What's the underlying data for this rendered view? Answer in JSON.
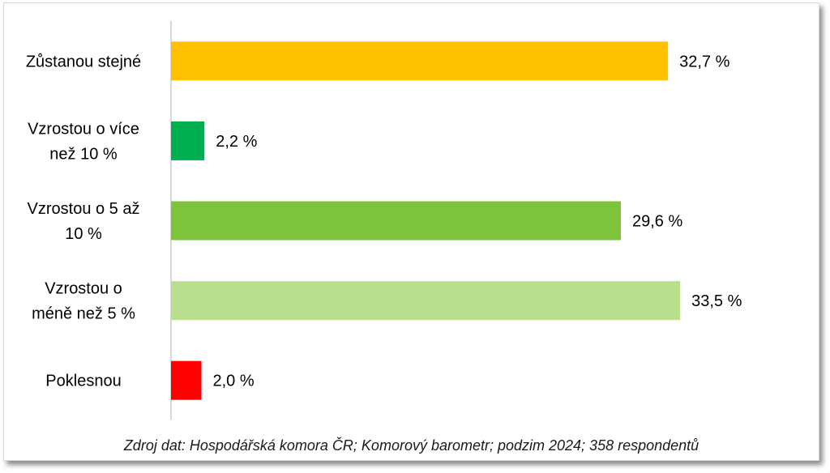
{
  "chart_data": {
    "type": "bar",
    "orientation": "horizontal",
    "categories": [
      [
        "Zůstanou stejné"
      ],
      [
        "Vzrostou o více",
        "než 10 %"
      ],
      [
        "Vzrostou o 5 až",
        "10 %"
      ],
      [
        "Vzrostou o",
        "méně než 5 %"
      ],
      [
        "Poklesnou"
      ]
    ],
    "values": [
      32.7,
      2.2,
      29.6,
      33.5,
      2.0
    ],
    "value_labels": [
      "32,7 %",
      "2,2 %",
      "29,6 %",
      "33,5 %",
      "2,0 %"
    ],
    "colors": [
      "#FFC000",
      "#00B050",
      "#7DC33B",
      "#B9E08F",
      "#FF0000"
    ],
    "xlim": [
      0,
      35
    ],
    "grid": false,
    "legend": "none"
  },
  "source_text": "Zdroj dat: Hospodářská komora ČR; Komorový barometr; podzim 2024; 358 respondentů"
}
